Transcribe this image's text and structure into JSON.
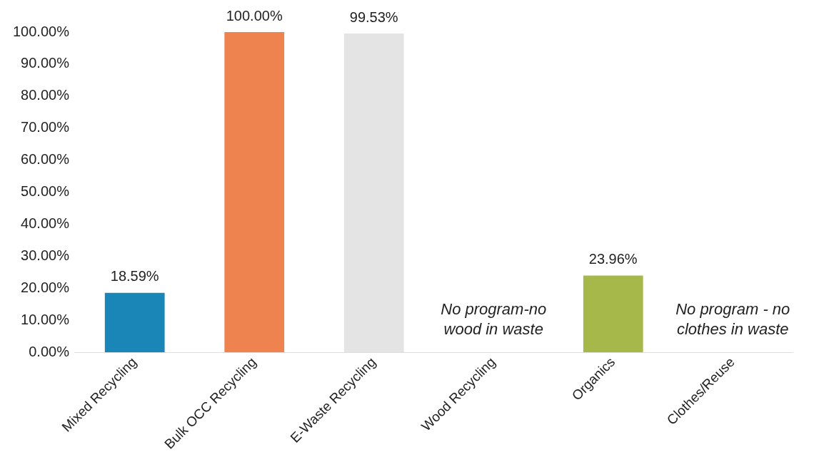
{
  "chart_data": {
    "type": "bar",
    "categories": [
      "Mixed Recycling",
      "Bulk OCC Recycling",
      "E-Waste Recycling",
      "Wood Recycling",
      "Organics",
      "Clothes/Reuse"
    ],
    "values": [
      18.59,
      100,
      99.53,
      null,
      23.96,
      null
    ],
    "colors": [
      "#1a86b8",
      "#ee8350",
      "#e4e4e4",
      "#a6a6a6",
      "#a6b84a",
      "#a6a6a6"
    ],
    "value_labels": [
      "18.59%",
      "100.00%",
      "99.53%",
      null,
      "23.96%",
      null
    ],
    "ylim": [
      0,
      100
    ],
    "yticks": [
      {
        "value": 0,
        "label": "0.00%"
      },
      {
        "value": 10,
        "label": "10.00%"
      },
      {
        "value": 20,
        "label": "20.00%"
      },
      {
        "value": 30,
        "label": "30.00%"
      },
      {
        "value": 40,
        "label": "40.00%"
      },
      {
        "value": 50,
        "label": "50.00%"
      },
      {
        "value": 60,
        "label": "60.00%"
      },
      {
        "value": 70,
        "label": "70.00%"
      },
      {
        "value": 80,
        "label": "80.00%"
      },
      {
        "value": 90,
        "label": "90.00%"
      },
      {
        "value": 100,
        "label": "100.00%"
      }
    ],
    "annotations": [
      "No program-no wood in waste",
      "No program - no clothes in waste"
    ],
    "grid": false,
    "legend": false
  }
}
